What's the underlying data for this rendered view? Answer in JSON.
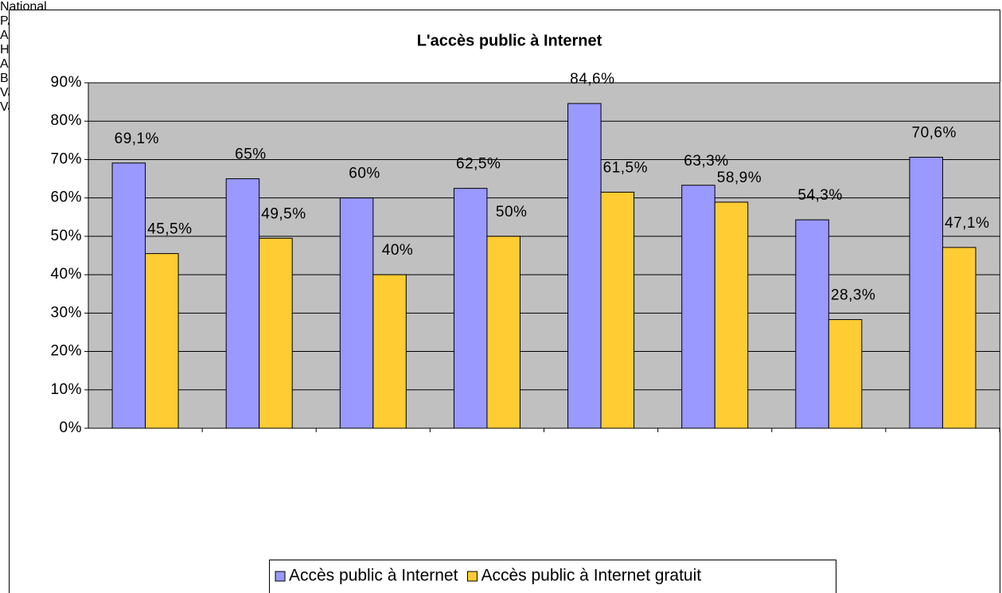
{
  "chart_data": {
    "type": "bar",
    "title": "L'accès public à Internet",
    "categories": [
      "National",
      "PACA",
      "Alpes-de-Haute-Provence",
      "Hautes-Alpes",
      "Alpes-Maritimes",
      "Bouches-du-Rhône",
      "Var",
      "Vaucluse"
    ],
    "series": [
      {
        "name": "Accès public à Internet",
        "color": "#9999ff",
        "values": [
          69.1,
          65,
          60,
          62.5,
          84.6,
          63.3,
          54.3,
          70.6
        ],
        "value_labels": [
          "69,1%",
          "65%",
          "60%",
          "62,5%",
          "84,6%",
          "63,3%",
          "54,3%",
          "70,6%"
        ]
      },
      {
        "name": "Accès public à Internet gratuit",
        "color": "#ffcc33",
        "values": [
          45.5,
          49.5,
          40,
          50,
          61.5,
          58.9,
          28.3,
          47.1
        ],
        "value_labels": [
          "45,5%",
          "49,5%",
          "40%",
          "50%",
          "61,5%",
          "58,9%",
          "28,3%",
          "47,1%"
        ]
      }
    ],
    "ylim": [
      0,
      90
    ],
    "yticks": [
      {
        "value": 0,
        "label": "0%"
      },
      {
        "value": 10,
        "label": "10%"
      },
      {
        "value": 20,
        "label": "20%"
      },
      {
        "value": 30,
        "label": "30%"
      },
      {
        "value": 40,
        "label": "40%"
      },
      {
        "value": 50,
        "label": "50%"
      },
      {
        "value": 60,
        "label": "60%"
      },
      {
        "value": 70,
        "label": "70%"
      },
      {
        "value": 80,
        "label": "80%"
      },
      {
        "value": 90,
        "label": "90%"
      }
    ],
    "grid": true,
    "legend": "bottom"
  }
}
